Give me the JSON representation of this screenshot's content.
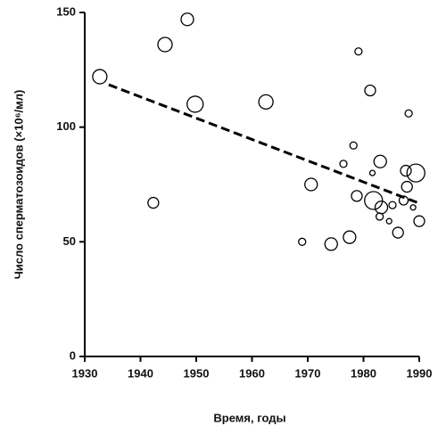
{
  "chart_data": {
    "type": "scatter",
    "xlabel": "Время, годы",
    "ylabel": "Число сперматозоидов (×10⁶/мл)",
    "xlim": [
      1930,
      1990
    ],
    "xticks": [
      1930,
      1940,
      1950,
      1960,
      1970,
      1980,
      1990
    ],
    "ylim": [
      0,
      150
    ],
    "yticks": [
      0,
      50,
      100,
      150
    ],
    "series": [
      {
        "color": "#000000",
        "x": [
          1932.7,
          1942.3,
          1944.4,
          1948.4,
          1949.8,
          1962.5,
          1969.0,
          1970.6,
          1974.2,
          1976.4,
          1978.2,
          1977.5,
          1978.8,
          1979.1,
          1981.2,
          1981.6,
          1981.8,
          1983.2,
          1983.0,
          1982.9,
          1984.6,
          1985.2,
          1986.2,
          1987.6,
          1988.1,
          1987.8,
          1987.2,
          1988.9,
          1989.4,
          1990.0
        ],
        "y": [
          122,
          67,
          136,
          147,
          110,
          111,
          50,
          75,
          49,
          84,
          92,
          52,
          70,
          133,
          116,
          80,
          68,
          65,
          85,
          61,
          59,
          66,
          54,
          81,
          106,
          74,
          68,
          65,
          80,
          59
        ],
        "sizes": [
          8,
          6,
          8,
          7,
          9,
          8,
          4,
          7,
          7,
          4,
          4,
          7,
          6,
          4,
          6,
          3,
          10,
          7,
          7,
          4,
          3,
          4,
          6,
          6,
          4,
          6,
          5,
          3,
          10,
          6
        ]
      }
    ],
    "trend": {
      "color": "#000000",
      "x": [
        1934.3,
        1990.0
      ],
      "y": [
        118.5,
        66.8
      ]
    }
  }
}
